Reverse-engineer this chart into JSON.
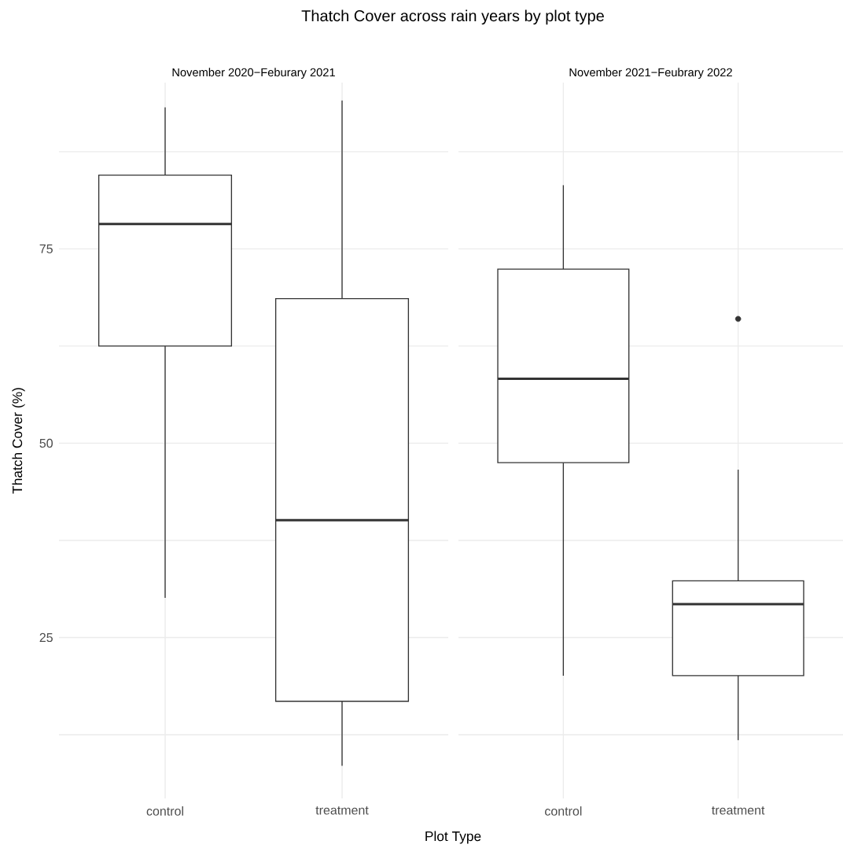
{
  "chart_data": [
    {
      "type": "box",
      "title": "Thatch Cover across rain years by plot type",
      "subtitle": "November 2020−Feburary 2021",
      "xlabel": "Plot Type",
      "ylabel": "Thatch Cover (%)",
      "categories": [
        "control",
        "treatment"
      ],
      "boxes": [
        {
          "low": 30.1,
          "q1": 62.5,
          "median": 78.2,
          "q3": 84.5,
          "high": 93.2
        },
        {
          "low": 8.5,
          "q1": 16.8,
          "median": 40.1,
          "q3": 68.6,
          "high": 94.1
        }
      ],
      "ylim": [
        4.3,
        96.4
      ],
      "yticks": [
        {
          "value": 12.5,
          "label": null
        },
        25,
        {
          "value": 37.5,
          "label": null
        },
        50,
        {
          "value": 62.5,
          "label": null
        },
        75,
        {
          "value": 87.5,
          "label": null
        }
      ],
      "grid": true
    },
    {
      "type": "box",
      "subtitle": "November 2021−Feubrary 2022",
      "categories": [
        "control",
        "treatment"
      ],
      "boxes": [
        {
          "low": 20.1,
          "q1": 47.5,
          "median": 58.3,
          "q3": 72.4,
          "high": 83.2
        },
        {
          "low": 11.8,
          "q1": 20.1,
          "median": 29.3,
          "q3": 32.3,
          "high": 46.6,
          "outliers": [
            66.0
          ]
        }
      ],
      "ylim": [
        4.3,
        96.4
      ],
      "yticks": [
        {
          "value": 12.5,
          "label": null
        },
        25,
        {
          "value": 37.5,
          "label": null
        },
        50,
        {
          "value": 62.5,
          "label": null
        },
        75,
        {
          "value": 87.5,
          "label": null
        }
      ],
      "grid": true,
      "tick_labels": "x"
    }
  ]
}
